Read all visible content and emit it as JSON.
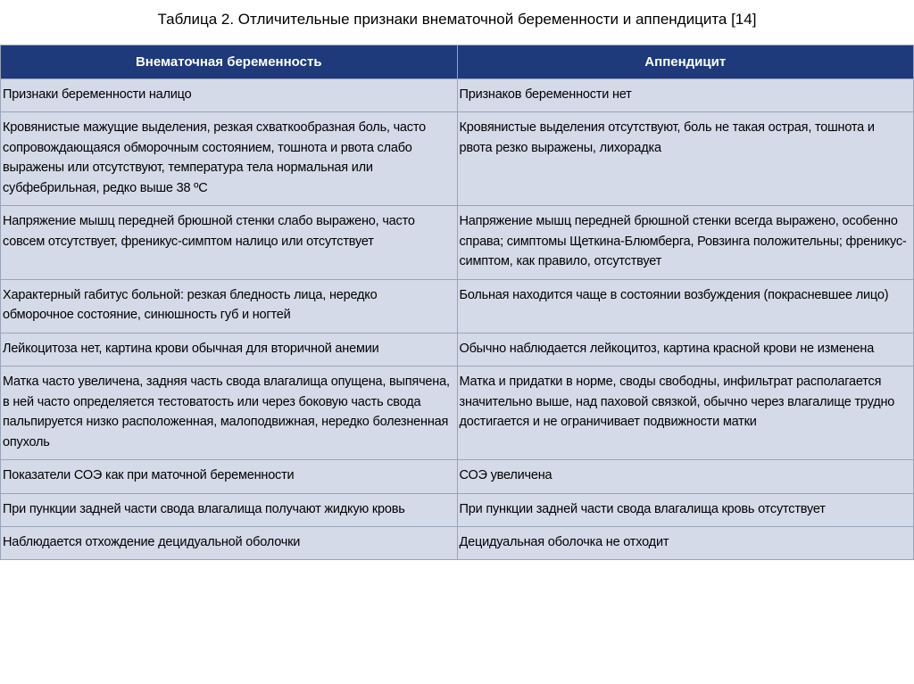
{
  "title": "Таблица 2. Отличительные признаки внематочной беременности и аппендицита [14]",
  "table": {
    "type": "table",
    "background_color": "#d4dae8",
    "header_bg": "#1e3a7a",
    "header_fg": "#ffffff",
    "border_color": "#9aa4b8",
    "text_color": "#000000",
    "title_fontsize": 17,
    "header_fontsize": 15,
    "cell_fontsize": 14.5,
    "columns": [
      "Внематочная беременность",
      "Аппендицит"
    ],
    "rows": [
      [
        "Признаки беременности налицо",
        "Признаков беременности нет"
      ],
      [
        "Кровянистые мажущие выделения, резкая схваткообразная боль, часто сопровождающаяся обморочным состоянием, тошнота и рвота слабо выражены или отсутствуют, температура тела нормальная или субфебрильная, редко выше 38 ºС",
        "Кровянистые выделения отсутствуют, боль не такая острая, тошнота и рвота резко выражены, лихорадка"
      ],
      [
        "Напряжение мышц передней брюшной стенки слабо выражено, часто совсем отсутствует, френикус-симптом налицо или отсутствует",
        "Напряжение мышц передней брюшной стенки всегда выражено, особенно справа; симптомы Щеткина-Блюмберга, Ровзинга положительны; френикус-симптом, как правило, отсутствует"
      ],
      [
        "Характерный габитус больной: резкая бледность лица, нередко обморочное состояние, синюшность губ и  ногтей",
        "Больная находится чаще в состоянии возбуждения (покрасневшее лицо)"
      ],
      [
        "Лейкоцитоза нет, картина крови обычная для вторичной анемии",
        "Обычно наблюдается лейкоцитоз, картина красной крови не изменена"
      ],
      [
        "Матка часто увеличена, задняя часть свода влагалища опущена, выпячена, в ней часто определяется тестоватость  или через боковую часть свода пальпируется низко расположенная, малоподвижная, нередко болезненная опухоль",
        "Матка и придатки в норме, своды свободны, инфильтрат располагается значительно выше, над паховой связкой, обычно через влагалище трудно достигается и не ограничивает подвижности матки"
      ],
      [
        "Показатели СОЭ как при маточной беременности",
        "СОЭ увеличена"
      ],
      [
        "При пункции задней части свода влагалища получают жидкую кровь",
        "При пункции задней части свода влагалища кровь отсутствует"
      ],
      [
        "Наблюдается отхождение децидуальной оболочки",
        "Децидуальная оболочка не отходит"
      ]
    ]
  }
}
